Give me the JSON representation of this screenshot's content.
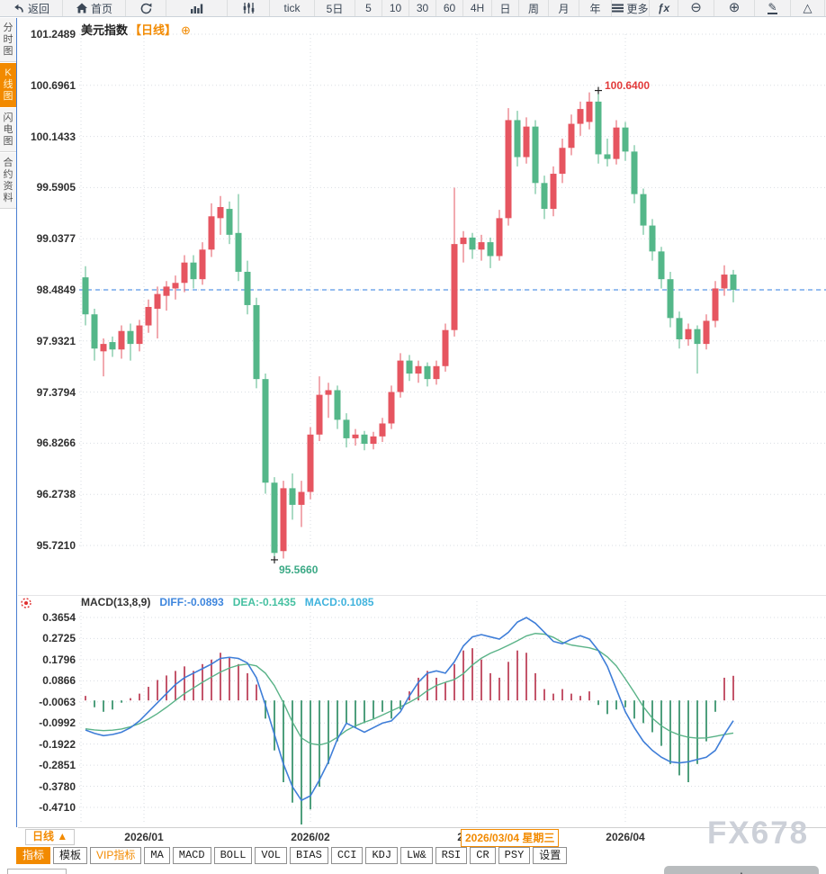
{
  "app": {
    "watermark": "FX678"
  },
  "toolbar": {
    "items": [
      {
        "id": "back",
        "icon": "back-arrow",
        "label": "返回"
      },
      {
        "id": "home",
        "icon": "home",
        "label": "首页"
      },
      {
        "id": "refresh",
        "icon": "refresh",
        "label": ""
      },
      {
        "id": "chart-type",
        "icon": "bar-chart",
        "label": ""
      },
      {
        "id": "kline-style",
        "icon": "kline-sliders",
        "label": ""
      },
      {
        "id": "period-tick",
        "icon": "",
        "label": "tick"
      },
      {
        "id": "period-5d",
        "icon": "",
        "label": "5日"
      },
      {
        "id": "period-5",
        "icon": "",
        "label": "5"
      },
      {
        "id": "period-10",
        "icon": "",
        "label": "10"
      },
      {
        "id": "period-30",
        "icon": "",
        "label": "30"
      },
      {
        "id": "period-60",
        "icon": "",
        "label": "60"
      },
      {
        "id": "period-4h",
        "icon": "",
        "label": "4H"
      },
      {
        "id": "period-day",
        "icon": "",
        "label": "日"
      },
      {
        "id": "period-week",
        "icon": "",
        "label": "周"
      },
      {
        "id": "period-month",
        "icon": "",
        "label": "月"
      },
      {
        "id": "period-year",
        "icon": "",
        "label": "年"
      },
      {
        "id": "more",
        "icon": "menu-lines",
        "label": "更多"
      },
      {
        "id": "fx-indicator",
        "icon": "fx",
        "label": ""
      },
      {
        "id": "zoom-out",
        "icon": "zoom-out",
        "label": ""
      },
      {
        "id": "zoom-in",
        "icon": "zoom-in",
        "label": ""
      },
      {
        "id": "draw",
        "icon": "pencil",
        "label": ""
      },
      {
        "id": "shapes",
        "icon": "triangle",
        "label": ""
      }
    ]
  },
  "sidebar": {
    "items": [
      {
        "id": "time-chart",
        "label": "分时图",
        "active": false
      },
      {
        "id": "kline-chart",
        "label": "K线图",
        "active": true
      },
      {
        "id": "flash-chart",
        "label": "闪电图",
        "active": false
      },
      {
        "id": "contract-info",
        "label": "合约资料",
        "active": false
      }
    ]
  },
  "chart_header": {
    "title": "美元指数",
    "period": "【日线】",
    "expand": "⊕"
  },
  "macd_header": {
    "name": "MACD(13,8,9)",
    "diff": "DIFF:-0.0893",
    "dea": "DEA:-0.1435",
    "macd": "MACD:0.1085"
  },
  "bottom": {
    "period_selector": "日线 ▲",
    "tabs": [
      {
        "id": "indicator",
        "label": "指标",
        "style": "active",
        "cjk": true
      },
      {
        "id": "template",
        "label": "模板",
        "style": "",
        "cjk": true
      },
      {
        "id": "vip-indicator",
        "label": "VIP指标",
        "style": "vip",
        "cjk": true
      },
      {
        "id": "ma",
        "label": "MA",
        "style": "",
        "cjk": false
      },
      {
        "id": "macd",
        "label": "MACD",
        "style": "",
        "cjk": false
      },
      {
        "id": "boll",
        "label": "BOLL",
        "style": "",
        "cjk": false
      },
      {
        "id": "vol",
        "label": "VOL",
        "style": "",
        "cjk": false
      },
      {
        "id": "bias",
        "label": "BIAS",
        "style": "",
        "cjk": false
      },
      {
        "id": "cci",
        "label": "CCI",
        "style": "",
        "cjk": false
      },
      {
        "id": "kdj",
        "label": "KDJ",
        "style": "",
        "cjk": false
      },
      {
        "id": "lw",
        "label": "LW&",
        "style": "",
        "cjk": false
      },
      {
        "id": "rsi",
        "label": "RSI",
        "style": "",
        "cjk": false
      },
      {
        "id": "cr",
        "label": "CR",
        "style": "",
        "cjk": false
      },
      {
        "id": "psy",
        "label": "PSY",
        "style": "",
        "cjk": false
      },
      {
        "id": "settings",
        "label": "设置",
        "style": "",
        "cjk": true
      }
    ]
  },
  "colors": {
    "accent_orange": "#f28a00",
    "candle_up": "#e65560",
    "candle_down": "#54b789",
    "hist_up": "#c4566b",
    "hist_down": "#4f9f7d",
    "diff_line": "#3f7ed8",
    "dea_line": "#5ab388",
    "close_line": "#2e7ce0",
    "annotation_high": "#e23b3b",
    "annotation_low": "#3ba985",
    "diff_text": "#3e86dd",
    "dea_text": "#45c0a1",
    "macd_text": "#40b3dd"
  },
  "chart_data": [
    {
      "type": "candlestick",
      "title": "美元指数【日线】",
      "y_ticks": [
        "101.2489",
        "100.6961",
        "100.1433",
        "99.5905",
        "99.0377",
        "98.4849",
        "97.9321",
        "97.3794",
        "96.8266",
        "96.2738",
        "95.7210"
      ],
      "ylim": [
        95.721,
        101.2489
      ],
      "x_ticks": [
        {
          "label": "2026/01",
          "index": 6.5
        },
        {
          "label": "2026/02",
          "index": 25
        },
        {
          "label": "2026/03",
          "index": 43.5
        },
        {
          "label": "2026/04",
          "index": 60
        }
      ],
      "crosshair_date": "2026/03/04 星期三",
      "latest_close": 98.4849,
      "high_marker": {
        "index": 57,
        "price": 100.64,
        "label": "100.6400"
      },
      "low_marker": {
        "index": 21,
        "price": 95.566,
        "label": "95.5660"
      },
      "ohlc": [
        [
          98.62,
          98.74,
          98.1,
          98.22
        ],
        [
          98.22,
          98.28,
          97.72,
          97.85
        ],
        [
          97.82,
          97.96,
          97.55,
          97.9
        ],
        [
          97.92,
          97.98,
          97.76,
          97.84
        ],
        [
          97.84,
          98.1,
          97.74,
          98.04
        ],
        [
          98.04,
          98.12,
          97.72,
          97.9
        ],
        [
          97.9,
          98.16,
          97.82,
          98.1
        ],
        [
          98.1,
          98.38,
          98.02,
          98.3
        ],
        [
          98.28,
          98.52,
          97.96,
          98.44
        ],
        [
          98.42,
          98.58,
          98.26,
          98.52
        ],
        [
          98.5,
          98.64,
          98.38,
          98.56
        ],
        [
          98.56,
          98.86,
          98.46,
          98.78
        ],
        [
          98.78,
          98.86,
          98.5,
          98.6
        ],
        [
          98.6,
          99.0,
          98.54,
          98.92
        ],
        [
          98.92,
          99.42,
          98.84,
          99.28
        ],
        [
          99.26,
          99.5,
          99.08,
          99.38
        ],
        [
          99.36,
          99.44,
          98.98,
          99.08
        ],
        [
          99.1,
          99.52,
          98.58,
          98.68
        ],
        [
          98.68,
          98.8,
          98.22,
          98.32
        ],
        [
          98.32,
          98.4,
          97.42,
          97.52
        ],
        [
          97.52,
          97.58,
          96.28,
          96.4
        ],
        [
          96.4,
          96.46,
          95.566,
          95.64
        ],
        [
          95.66,
          96.42,
          95.58,
          96.34
        ],
        [
          96.34,
          96.5,
          96.0,
          96.16
        ],
        [
          96.16,
          96.42,
          95.92,
          96.3
        ],
        [
          96.3,
          97.0,
          96.22,
          96.92
        ],
        [
          96.92,
          97.55,
          96.85,
          97.35
        ],
        [
          97.35,
          97.48,
          97.1,
          97.4
        ],
        [
          97.4,
          97.45,
          96.98,
          97.08
        ],
        [
          97.08,
          97.15,
          96.78,
          96.88
        ],
        [
          96.88,
          96.98,
          96.8,
          96.92
        ],
        [
          96.92,
          96.96,
          96.75,
          96.82
        ],
        [
          96.82,
          96.95,
          96.76,
          96.9
        ],
        [
          96.9,
          97.1,
          96.84,
          97.04
        ],
        [
          97.04,
          97.45,
          96.98,
          97.38
        ],
        [
          97.38,
          97.8,
          97.32,
          97.72
        ],
        [
          97.72,
          97.78,
          97.5,
          97.58
        ],
        [
          97.58,
          97.72,
          97.48,
          97.66
        ],
        [
          97.66,
          97.7,
          97.44,
          97.52
        ],
        [
          97.52,
          97.72,
          97.46,
          97.66
        ],
        [
          97.66,
          98.12,
          97.6,
          98.05
        ],
        [
          98.05,
          99.59,
          97.98,
          98.98
        ],
        [
          98.98,
          99.12,
          98.78,
          99.05
        ],
        [
          99.05,
          99.1,
          98.82,
          98.92
        ],
        [
          98.92,
          99.08,
          98.8,
          99.0
        ],
        [
          99.0,
          99.05,
          98.72,
          98.85
        ],
        [
          98.85,
          99.35,
          98.8,
          99.26
        ],
        [
          99.26,
          100.45,
          99.18,
          100.32
        ],
        [
          100.32,
          100.42,
          99.82,
          99.92
        ],
        [
          99.92,
          100.35,
          99.85,
          100.25
        ],
        [
          100.25,
          100.32,
          99.52,
          99.64
        ],
        [
          99.64,
          99.72,
          99.25,
          99.36
        ],
        [
          99.36,
          99.82,
          99.28,
          99.74
        ],
        [
          99.74,
          100.12,
          99.64,
          100.02
        ],
        [
          100.02,
          100.38,
          99.94,
          100.28
        ],
        [
          100.28,
          100.52,
          100.15,
          100.44
        ],
        [
          100.3,
          100.62,
          100.22,
          100.52
        ],
        [
          100.52,
          100.64,
          99.85,
          99.95
        ],
        [
          99.95,
          100.12,
          99.82,
          99.9
        ],
        [
          99.9,
          100.32,
          99.84,
          100.24
        ],
        [
          100.24,
          100.3,
          99.88,
          99.98
        ],
        [
          99.98,
          100.05,
          99.42,
          99.52
        ],
        [
          99.52,
          99.58,
          99.08,
          99.18
        ],
        [
          99.18,
          99.25,
          98.8,
          98.9
        ],
        [
          98.9,
          98.95,
          98.5,
          98.6
        ],
        [
          98.6,
          98.68,
          98.08,
          98.18
        ],
        [
          98.18,
          98.25,
          97.85,
          97.95
        ],
        [
          97.95,
          98.12,
          97.88,
          98.06
        ],
        [
          98.06,
          98.1,
          97.58,
          97.9
        ],
        [
          97.9,
          98.22,
          97.84,
          98.15
        ],
        [
          98.15,
          98.58,
          98.08,
          98.5
        ],
        [
          98.5,
          98.75,
          98.42,
          98.65
        ],
        [
          98.65,
          98.7,
          98.35,
          98.4849
        ]
      ]
    },
    {
      "type": "macd",
      "params": [
        13,
        8,
        9
      ],
      "y_ticks": [
        "0.3654",
        "0.2725",
        "0.1796",
        "0.0866",
        "-0.0063",
        "-0.0992",
        "-0.1922",
        "-0.2851",
        "-0.3780",
        "-0.4710"
      ],
      "ylim": [
        -0.471,
        0.3654
      ],
      "latest": {
        "diff": -0.0893,
        "dea": -0.1435,
        "macd": 0.1085
      },
      "diff": [
        -0.13,
        -0.145,
        -0.155,
        -0.15,
        -0.14,
        -0.12,
        -0.09,
        -0.05,
        -0.01,
        0.03,
        0.07,
        0.1,
        0.12,
        0.14,
        0.16,
        0.185,
        0.19,
        0.185,
        0.165,
        0.1,
        -0.02,
        -0.15,
        -0.28,
        -0.38,
        -0.44,
        -0.42,
        -0.35,
        -0.27,
        -0.17,
        -0.1,
        -0.12,
        -0.14,
        -0.12,
        -0.1,
        -0.09,
        -0.05,
        0.02,
        0.08,
        0.12,
        0.13,
        0.12,
        0.17,
        0.24,
        0.28,
        0.29,
        0.28,
        0.27,
        0.3,
        0.345,
        0.365,
        0.34,
        0.3,
        0.26,
        0.25,
        0.27,
        0.285,
        0.27,
        0.22,
        0.15,
        0.05,
        -0.05,
        -0.12,
        -0.18,
        -0.22,
        -0.25,
        -0.27,
        -0.275,
        -0.27,
        -0.26,
        -0.25,
        -0.22,
        -0.15,
        -0.0893
      ],
      "dea": [
        -0.125,
        -0.13,
        -0.133,
        -0.131,
        -0.126,
        -0.116,
        -0.102,
        -0.082,
        -0.058,
        -0.03,
        0.0,
        0.03,
        0.055,
        0.08,
        0.103,
        0.125,
        0.143,
        0.155,
        0.16,
        0.152,
        0.12,
        0.065,
        -0.01,
        -0.095,
        -0.165,
        -0.19,
        -0.196,
        -0.186,
        -0.162,
        -0.132,
        -0.112,
        -0.096,
        -0.082,
        -0.064,
        -0.046,
        -0.028,
        -0.008,
        0.014,
        0.043,
        0.066,
        0.08,
        0.092,
        0.118,
        0.156,
        0.186,
        0.208,
        0.224,
        0.243,
        0.263,
        0.284,
        0.295,
        0.292,
        0.278,
        0.256,
        0.244,
        0.238,
        0.232,
        0.22,
        0.192,
        0.152,
        0.095,
        0.035,
        -0.028,
        -0.078,
        -0.112,
        -0.136,
        -0.152,
        -0.162,
        -0.166,
        -0.165,
        -0.158,
        -0.15,
        -0.1435
      ],
      "hist": [
        0.02,
        -0.03,
        -0.05,
        -0.04,
        -0.01,
        0.01,
        0.03,
        0.06,
        0.09,
        0.11,
        0.13,
        0.15,
        0.13,
        0.16,
        0.18,
        0.21,
        0.19,
        0.16,
        0.12,
        0.07,
        -0.08,
        -0.22,
        -0.36,
        -0.45,
        -0.56,
        -0.48,
        -0.38,
        -0.28,
        -0.18,
        -0.1,
        -0.12,
        -0.1,
        -0.08,
        -0.05,
        -0.08,
        -0.04,
        0.04,
        0.1,
        0.13,
        0.1,
        0.08,
        0.16,
        0.22,
        0.23,
        0.18,
        0.12,
        0.1,
        0.17,
        0.22,
        0.21,
        0.12,
        0.05,
        0.03,
        0.05,
        0.03,
        0.02,
        0.04,
        -0.02,
        -0.06,
        -0.04,
        -0.03,
        -0.08,
        -0.1,
        -0.14,
        -0.2,
        -0.28,
        -0.33,
        -0.36,
        -0.28,
        -0.18,
        -0.05,
        0.1,
        0.1085
      ]
    }
  ]
}
